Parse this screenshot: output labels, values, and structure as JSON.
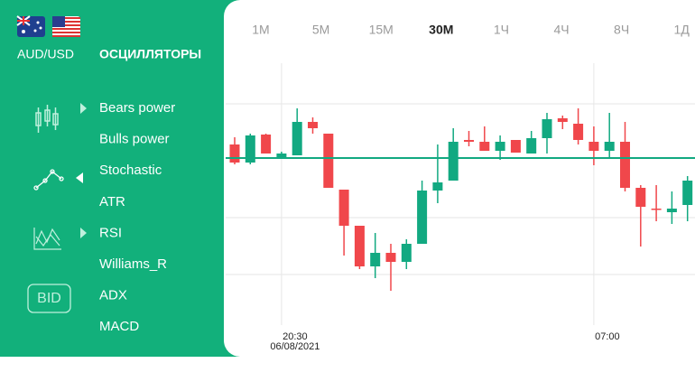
{
  "pair": "AUD/USD",
  "section_title": "ОСЦИЛЛЯТОРЫ",
  "menu": [
    "Bears power",
    "Bulls power",
    "Stochastic",
    "ATR",
    "RSI",
    "Williams_R",
    "ADX",
    "MACD"
  ],
  "bid_button": "BID",
  "timeframes": [
    "1М",
    "5М",
    "15М",
    "30М",
    "1Ч",
    "4Ч",
    "8Ч",
    "1Д"
  ],
  "active_timeframe": 3,
  "chart_data": {
    "type": "candlestick",
    "categories": [
      null,
      null,
      null,
      "20:30",
      null,
      null,
      null,
      null,
      null,
      null,
      null,
      null,
      null,
      null,
      null,
      null,
      null,
      null,
      null,
      null,
      null,
      null,
      null,
      "07:00",
      null,
      null,
      null,
      null,
      null,
      null
    ],
    "date": "06/08/2021",
    "open": [
      240,
      220,
      251,
      226,
      228,
      265,
      252,
      190,
      150,
      105,
      120,
      110,
      130,
      189,
      200,
      245,
      243,
      233,
      245,
      230,
      247,
      269,
      263,
      243,
      233,
      243,
      192,
      169,
      165,
      173
    ],
    "high": [
      248,
      252,
      252,
      232,
      280,
      270,
      252,
      190,
      150,
      142,
      130,
      135,
      200,
      240,
      258,
      255,
      260,
      250,
      245,
      255,
      275,
      272,
      280,
      260,
      275,
      265,
      195,
      195,
      188,
      205
    ],
    "low": [
      218,
      218,
      230,
      224,
      228,
      252,
      192,
      117,
      102,
      92,
      78,
      102,
      130,
      175,
      200,
      238,
      233,
      223,
      231,
      230,
      230,
      257,
      240,
      217,
      225,
      188,
      127,
      155,
      152,
      155
    ],
    "close": [
      220,
      250,
      230,
      230,
      265,
      258,
      192,
      150,
      105,
      120,
      110,
      130,
      189,
      198,
      243,
      243,
      233,
      243,
      231,
      247,
      268,
      265,
      245,
      233,
      243,
      192,
      171,
      168,
      169,
      200
    ],
    "up_color": "#12a981",
    "down_color": "#f0474b",
    "last_price": 225,
    "ylim": [
      0,
      400
    ]
  }
}
